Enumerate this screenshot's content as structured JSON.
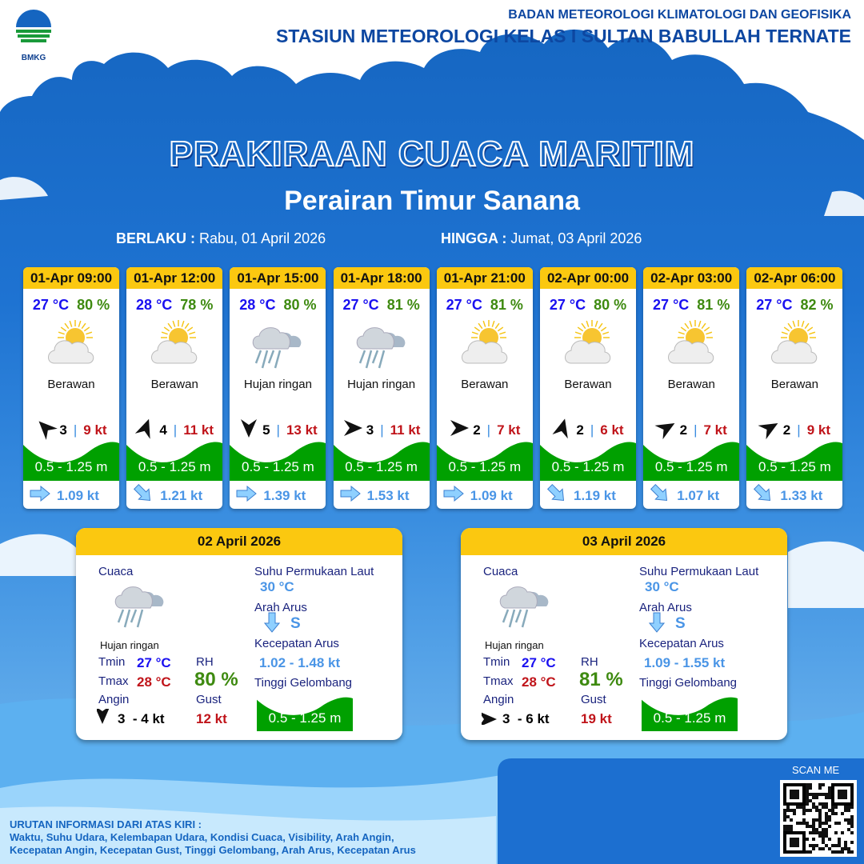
{
  "header": {
    "org": "BADAN METEOROLOGI KLIMATOLOGI DAN GEOFISIKA",
    "station": "STASIUN METEOROLOGI KELAS I SULTAN BABULLAH TERNATE",
    "logo_text": "BMKG"
  },
  "title": "PRAKIRAAN CUACA MARITIM",
  "subtitle": "Perairan Timur Sanana",
  "validity": {
    "from_label": "BERLAKU :",
    "from": "Rabu, 01 April 2026",
    "to_label": "HINGGA :",
    "to": "Jumat, 03 April 2026"
  },
  "colors": {
    "header_yellow": "#fbc810",
    "temp_blue": "#1a10f0",
    "rh_green": "#3e8a10",
    "gust_red": "#c0141a",
    "wave_green": "#00a000",
    "current_blue": "#4a95e6"
  },
  "forecasts": [
    {
      "time": "01-Apr 09:00",
      "temp": "27 °C",
      "rh": "80 %",
      "icon": "partly-cloudy",
      "cond": "Berawan",
      "wind_dir_deg": 315,
      "wind": "3",
      "gust": "9 kt",
      "wave": "0.5 - 1.25 m",
      "cur_dir_deg": 90,
      "cur": "1.09 kt"
    },
    {
      "time": "01-Apr 12:00",
      "temp": "28 °C",
      "rh": "78 %",
      "icon": "partly-cloudy",
      "cond": "Berawan",
      "wind_dir_deg": 20,
      "wind": "4",
      "gust": "11 kt",
      "wave": "0.5 - 1.25 m",
      "cur_dir_deg": 135,
      "cur": "1.21 kt"
    },
    {
      "time": "01-Apr 15:00",
      "temp": "28 °C",
      "rh": "80 %",
      "icon": "light-rain",
      "cond": "Hujan ringan",
      "wind_dir_deg": 180,
      "wind": "5",
      "gust": "13 kt",
      "wave": "0.5 - 1.25 m",
      "cur_dir_deg": 90,
      "cur": "1.39 kt"
    },
    {
      "time": "01-Apr 18:00",
      "temp": "27 °C",
      "rh": "81 %",
      "icon": "light-rain",
      "cond": "Hujan ringan",
      "wind_dir_deg": 90,
      "wind": "3",
      "gust": "11 kt",
      "wave": "0.5 - 1.25 m",
      "cur_dir_deg": 90,
      "cur": "1.53 kt"
    },
    {
      "time": "01-Apr 21:00",
      "temp": "27 °C",
      "rh": "81 %",
      "icon": "partly-cloudy",
      "cond": "Berawan",
      "wind_dir_deg": 90,
      "wind": "2",
      "gust": "7 kt",
      "wave": "0.5 - 1.25 m",
      "cur_dir_deg": 90,
      "cur": "1.09 kt"
    },
    {
      "time": "02-Apr 00:00",
      "temp": "27 °C",
      "rh": "80 %",
      "icon": "partly-cloudy",
      "cond": "Berawan",
      "wind_dir_deg": 15,
      "wind": "2",
      "gust": "6 kt",
      "wave": "0.5 - 1.25 m",
      "cur_dir_deg": 135,
      "cur": "1.19 kt"
    },
    {
      "time": "02-Apr 03:00",
      "temp": "27 °C",
      "rh": "81 %",
      "icon": "partly-cloudy",
      "cond": "Berawan",
      "wind_dir_deg": 60,
      "wind": "2",
      "gust": "7 kt",
      "wave": "0.5 - 1.25 m",
      "cur_dir_deg": 135,
      "cur": "1.07 kt"
    },
    {
      "time": "02-Apr 06:00",
      "temp": "27 °C",
      "rh": "82 %",
      "icon": "partly-cloudy",
      "cond": "Berawan",
      "wind_dir_deg": 60,
      "wind": "2",
      "gust": "9 kt",
      "wave": "0.5 - 1.25 m",
      "cur_dir_deg": 135,
      "cur": "1.33 kt"
    }
  ],
  "summary_labels": {
    "cuaca": "Cuaca",
    "tmin": "Tmin",
    "tmax": "Tmax",
    "angin": "Angin",
    "rh": "RH",
    "gust": "Gust",
    "sst": "Suhu Permukaan Laut",
    "arah": "Arah Arus",
    "kec": "Kecepatan Arus",
    "tinggi": "Tinggi Gelombang"
  },
  "summaries": [
    {
      "date": "02 April 2026",
      "cond": "Hujan ringan",
      "tmin": "27 °C",
      "tmax": "28 °C",
      "rh": "80 %",
      "wind_dir_deg": 180,
      "wind": "3  - 4 kt",
      "gust": "12 kt",
      "sst": "30 °C",
      "cur_dir": "S",
      "cur": "1.02 - 1.48 kt",
      "wave": "0.5 - 1.25 m"
    },
    {
      "date": "03 April 2026",
      "cond": "Hujan ringan",
      "tmin": "27 °C",
      "tmax": "28 °C",
      "rh": "81 %",
      "wind_dir_deg": 90,
      "wind": "3  - 6 kt",
      "gust": "19 kt",
      "sst": "30 °C",
      "cur_dir": "S",
      "cur": "1.09 - 1.55 kt",
      "wave": "0.5 - 1.25 m"
    }
  ],
  "footer": {
    "heading": "URUTAN INFORMASI DARI ATAS KIRI :",
    "line1": "Waktu, Suhu Udara, Kelembapan Udara, Kondisi Cuaca, Visibility, Arah Angin,",
    "line2": "Kecepatan Angin, Kecepatan Gust, Tinggi Gelombang, Arah Arus, Kecepatan Arus",
    "scan": "SCAN ME"
  }
}
